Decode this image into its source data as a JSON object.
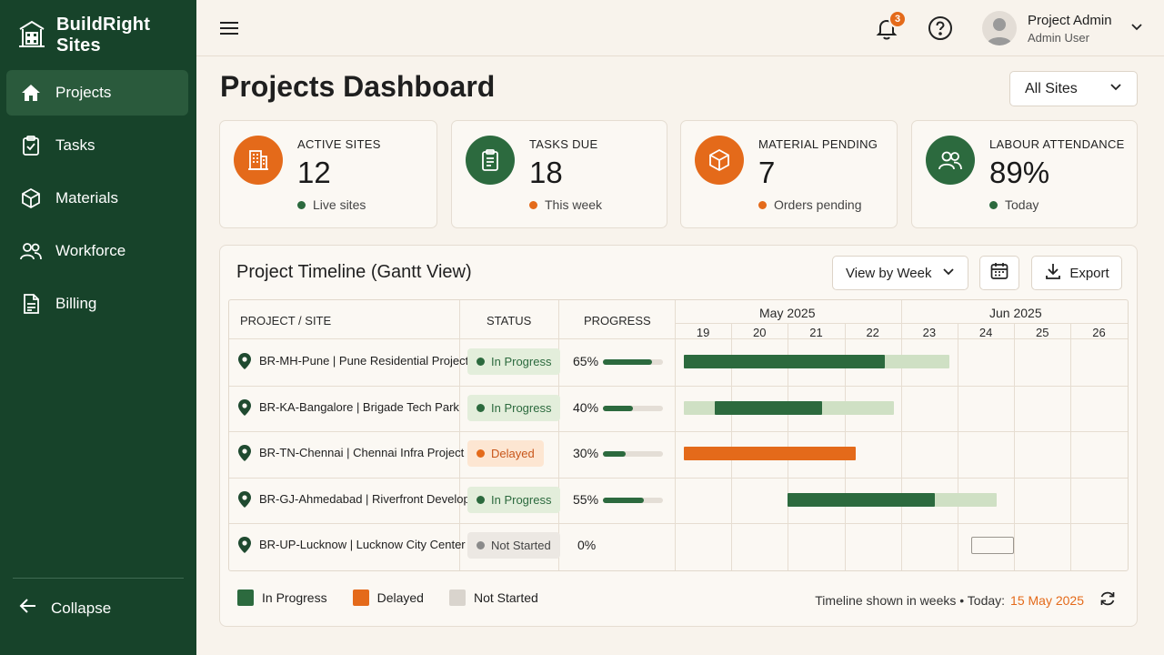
{
  "brand": {
    "name": "BuildRight Sites"
  },
  "sidebar": {
    "items": [
      {
        "label": "Projects",
        "icon": "home-icon",
        "active": true
      },
      {
        "label": "Tasks",
        "icon": "clipboard-check-icon"
      },
      {
        "label": "Materials",
        "icon": "cube-icon"
      },
      {
        "label": "Workforce",
        "icon": "users-icon"
      },
      {
        "label": "Billing",
        "icon": "document-icon"
      }
    ],
    "collapse_label": "Collapse"
  },
  "topbar": {
    "notification_count": "3",
    "user_name": "Project Admin",
    "user_role": "Admin User"
  },
  "header": {
    "title": "Projects Dashboard",
    "site_filter": "All Sites"
  },
  "stats": [
    {
      "label": "ACTIVE SITES",
      "value": "12",
      "sub": "Live sites",
      "icon": "building-icon",
      "color": "#e46a1a",
      "dot": "#2c6a3e"
    },
    {
      "label": "TASKS DUE",
      "value": "18",
      "sub": "This week",
      "icon": "clipboard-icon",
      "color": "#2c6a3e",
      "dot": "#e46a1a"
    },
    {
      "label": "MATERIAL PENDING",
      "value": "7",
      "sub": "Orders pending",
      "icon": "cube-icon",
      "color": "#e46a1a",
      "dot": "#e46a1a"
    },
    {
      "label": "LABOUR ATTENDANCE",
      "value": "89%",
      "sub": "Today",
      "icon": "users-icon",
      "color": "#2c6a3e",
      "dot": "#2c6a3e"
    }
  ],
  "timeline": {
    "title": "Project Timeline (Gantt View)",
    "view_select": "View by Week",
    "export_label": "Export",
    "columns": {
      "project": "PROJECT / SITE",
      "status": "STATUS",
      "progress": "PROGRESS"
    },
    "months": [
      "May 2025",
      "Jun 2025"
    ],
    "weeks": [
      "19",
      "20",
      "21",
      "22",
      "23",
      "24",
      "25",
      "26"
    ],
    "rows": [
      {
        "name": "BR-MH-Pune | Pune Residential Project",
        "status": "In Progress",
        "progress_label": "65%",
        "progress": 0.65,
        "status_key": "progress"
      },
      {
        "name": "BR-KA-Bangalore | Brigade Tech Park",
        "status": "In Progress",
        "progress_label": "40%",
        "progress": 0.4,
        "status_key": "progress"
      },
      {
        "name": "BR-TN-Chennai | Chennai Infra Project",
        "status": "Delayed",
        "progress_label": "30%",
        "progress": 0.3,
        "status_key": "delayed"
      },
      {
        "name": "BR-GJ-Ahmedabad | Riverfront Development",
        "status": "In Progress",
        "progress_label": "55%",
        "progress": 0.55,
        "status_key": "progress"
      },
      {
        "name": "BR-UP-Lucknow | Lucknow City Center",
        "status": "Not Started",
        "progress_label": "0%",
        "progress": 0.0,
        "status_key": "notstarted"
      }
    ],
    "legend": [
      {
        "label": "In Progress",
        "color": "#2c6a3e"
      },
      {
        "label": "Delayed",
        "color": "#e46a1a"
      },
      {
        "label": "Not Started",
        "color": "#d9d4cd"
      }
    ],
    "footer_text": "Timeline shown in weeks  •  Today:",
    "today": "15 May 2025"
  },
  "colors": {
    "sidebar": "#17432a",
    "accent_orange": "#e46a1a",
    "accent_green": "#2c6a3e",
    "light_green": "#cfe0c4"
  }
}
